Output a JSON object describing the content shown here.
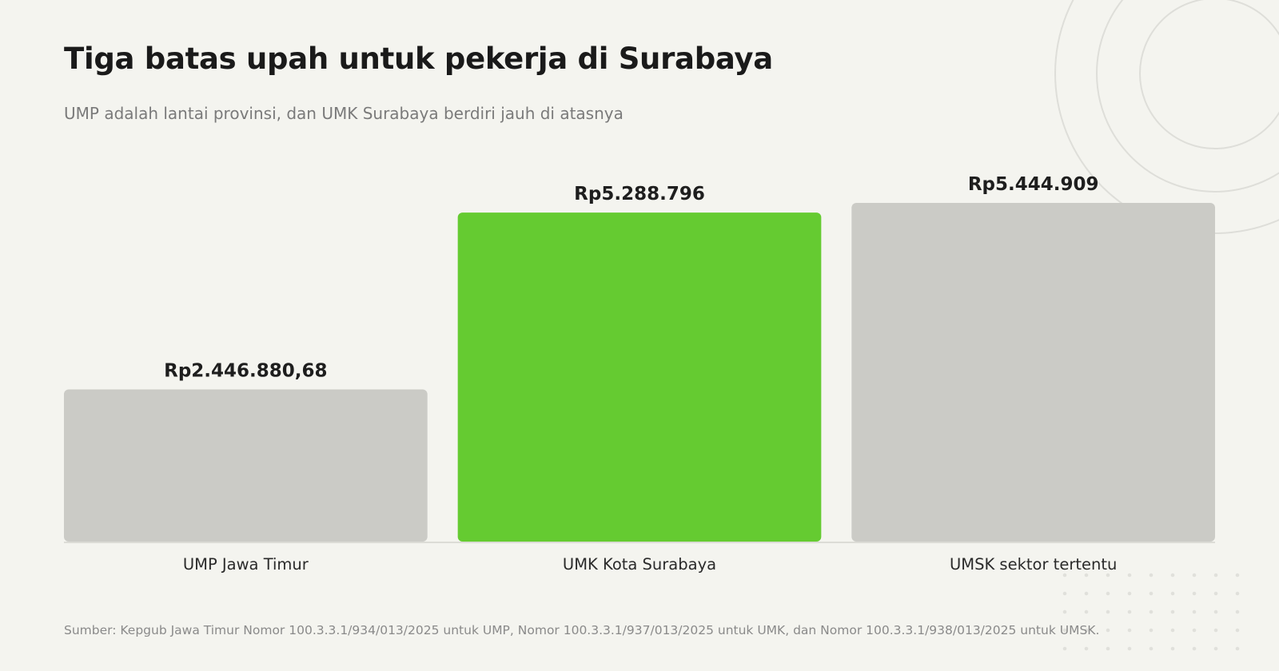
{
  "header": {
    "title": "Tiga batas upah untuk pekerja di Surabaya",
    "subtitle": "UMP adalah lantai provinsi, dan UMK Surabaya berdiri jauh di atasnya"
  },
  "footer": {
    "source": "Sumber: Kepgub Jawa Timur Nomor 100.3.3.1/934/013/2025 untuk UMP, Nomor 100.3.3.1/937/013/2025 untuk UMK, dan Nomor 100.3.3.1/938/013/2025 untuk UMSK."
  },
  "chart_data": {
    "type": "bar",
    "title": "Tiga batas upah untuk pekerja di Surabaya",
    "subtitle": "UMP adalah lantai provinsi, dan UMK Surabaya berdiri jauh di atasnya",
    "categories": [
      "UMP Jawa Timur",
      "UMK Kota Surabaya",
      "UMSK sektor tertentu"
    ],
    "values": [
      2446880.68,
      5288796,
      5444909
    ],
    "value_labels": [
      "Rp2.446.880,68",
      "Rp5.288.796",
      "Rp5.444.909"
    ],
    "bar_colors": [
      "#cbcbc6",
      "#65cb31",
      "#cbcbc6"
    ],
    "highlight_color": "#65cb31",
    "neutral_color": "#cbcbc6",
    "xlabel": "",
    "ylabel": "",
    "ylim": [
      0,
      5444909
    ],
    "grid": false,
    "legend": "none"
  }
}
